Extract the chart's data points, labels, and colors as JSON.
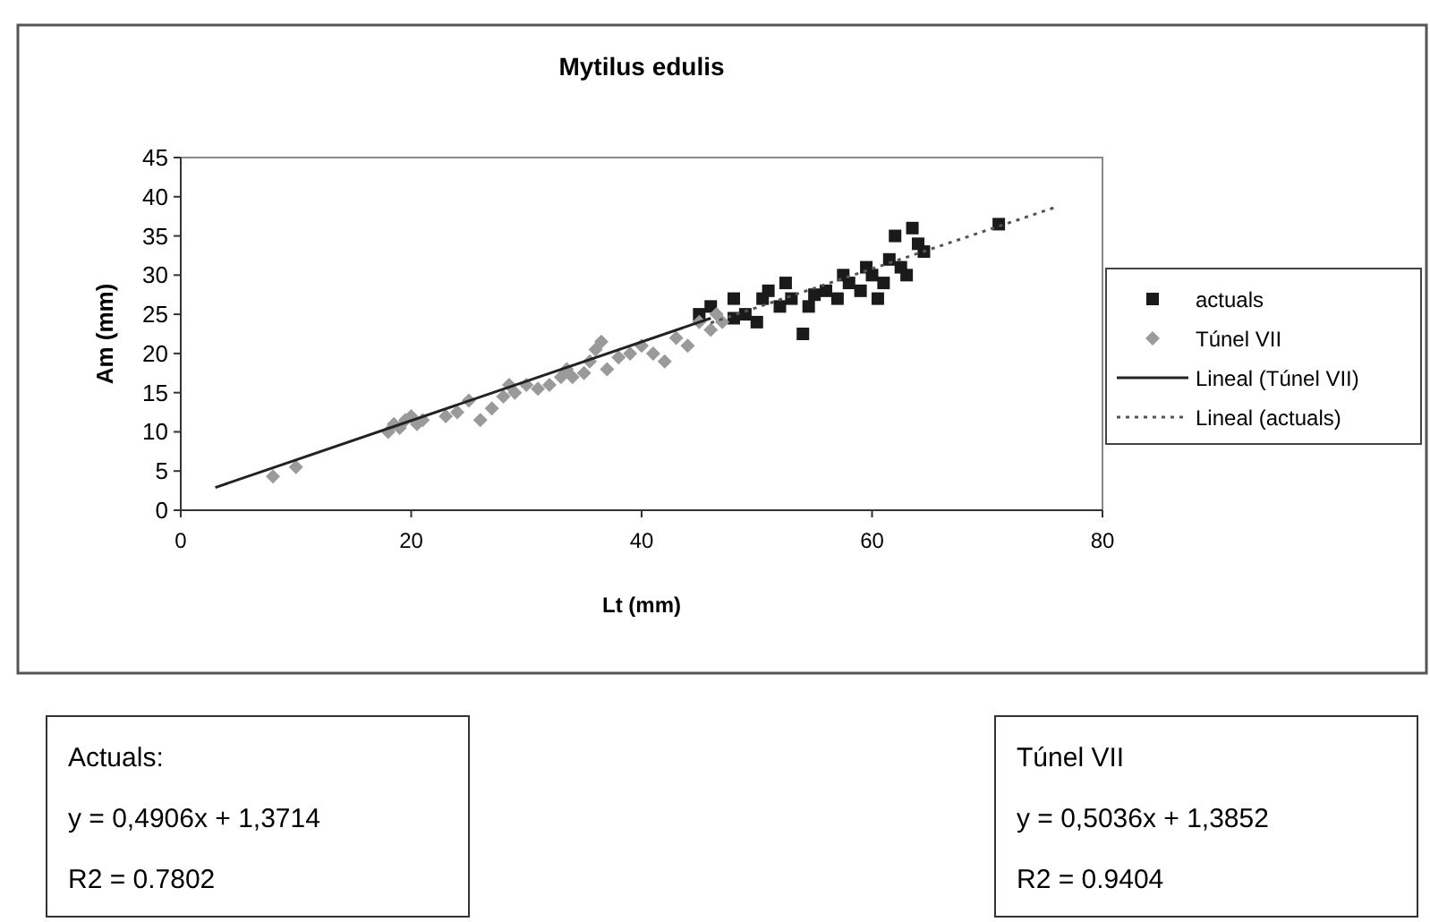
{
  "chart_data": {
    "type": "scatter",
    "title": "Mytilus edulis",
    "xlabel": "Lt (mm)",
    "ylabel": "Am (mm)",
    "xlim": [
      0,
      80
    ],
    "xticks": [
      0,
      20,
      40,
      60,
      80
    ],
    "ylim": [
      0,
      45
    ],
    "yticks": [
      0,
      5,
      10,
      15,
      20,
      25,
      30,
      35,
      40,
      45
    ],
    "grid": false,
    "legend": "right",
    "series": [
      {
        "name": "actuals",
        "type": "scatter",
        "marker": "square",
        "color": "#1a1a1a",
        "x": [
          45,
          46,
          48,
          48,
          49,
          50,
          50.5,
          51,
          52,
          52.5,
          53,
          54,
          54.5,
          55,
          56,
          57,
          57.5,
          58,
          59,
          59.5,
          60,
          60.5,
          61,
          61.5,
          62,
          62.5,
          63,
          63.5,
          64,
          64.5,
          71
        ],
        "values": [
          25,
          26,
          24.5,
          27,
          25,
          24,
          27,
          28,
          26,
          29,
          27,
          22.5,
          26,
          27.5,
          28,
          27,
          30,
          29,
          28,
          31,
          30,
          27,
          29,
          32,
          35,
          31,
          30,
          36,
          34,
          33,
          36.5
        ]
      },
      {
        "name": "Túnel VII",
        "type": "scatter",
        "marker": "diamond",
        "color": "#9a9a9a",
        "x": [
          8,
          10,
          18,
          18.5,
          19,
          19.5,
          20,
          20.5,
          21,
          23,
          24,
          25,
          26,
          27,
          28,
          28.5,
          29,
          30,
          31,
          32,
          33,
          33.5,
          34,
          35,
          35.5,
          36,
          36.5,
          37,
          38,
          39,
          40,
          41,
          42,
          43,
          44,
          45,
          46,
          46.5,
          47
        ],
        "values": [
          4.3,
          5.5,
          10,
          11,
          10.5,
          11.5,
          12,
          11,
          11.5,
          12,
          12.5,
          14,
          11.5,
          13,
          14.5,
          16,
          15,
          16,
          15.5,
          16,
          17,
          18,
          17,
          17.5,
          19,
          20.5,
          21.5,
          18,
          19.5,
          20,
          21,
          20,
          19,
          22,
          21,
          24,
          23,
          25,
          24
        ]
      },
      {
        "name": "Lineal (Túnel VII)",
        "type": "line",
        "line_style": "solid",
        "color": "#222222",
        "x": [
          3,
          46
        ],
        "values": [
          2.9,
          24.5
        ]
      },
      {
        "name": "Lineal (actuals)",
        "type": "line",
        "line_style": "dotted",
        "color": "#555555",
        "x": [
          46,
          76
        ],
        "values": [
          23.9,
          38.7
        ]
      }
    ],
    "annotations": [
      "Actuals:\ny = 0,4906x + 1,3714\nR2 = 0.7802",
      "Túnel VII\ny = 0,5036x + 1,3852\nR2 = 0.9404"
    ]
  }
}
